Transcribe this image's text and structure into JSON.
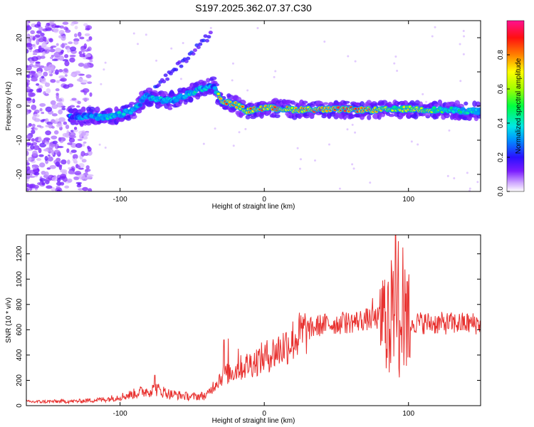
{
  "title": "S197.2025.362.07.37.C30",
  "chart_data": [
    {
      "type": "heatmap",
      "xlabel": "Height of straight line (km)",
      "ylabel": "Frequency (Hz)",
      "xlim": [
        -165,
        150
      ],
      "ylim": [
        -25,
        25
      ],
      "xticks": [
        -100,
        0,
        100
      ],
      "yticks": [
        -20,
        -10,
        0,
        10,
        20
      ],
      "colorbar": {
        "label": "Normalized spectral amplitude",
        "range": [
          0,
          1
        ],
        "ticks": [
          0.0,
          0.2,
          0.4,
          0.6,
          0.8
        ]
      },
      "ridge": [
        [
          -130,
          -3,
          0.3
        ],
        [
          -120,
          -3,
          0.35
        ],
        [
          -110,
          -3.5,
          0.4
        ],
        [
          -100,
          -2.5,
          0.4
        ],
        [
          -90,
          -1,
          0.4
        ],
        [
          -82,
          3,
          0.35
        ],
        [
          -75,
          2,
          0.4
        ],
        [
          -65,
          1.5,
          0.35
        ],
        [
          -55,
          3,
          0.4
        ],
        [
          -45,
          5,
          0.4
        ],
        [
          -35,
          6,
          0.35
        ],
        [
          -30,
          1.5,
          0.9
        ],
        [
          -20,
          0.5,
          0.75
        ],
        [
          -12,
          -1.5,
          0.8
        ],
        [
          0,
          -0.5,
          0.85
        ],
        [
          20,
          -1,
          0.75
        ],
        [
          40,
          -1,
          0.9
        ],
        [
          60,
          -1,
          0.85
        ],
        [
          75,
          -1.2,
          0.8
        ],
        [
          90,
          -1,
          0.65
        ],
        [
          100,
          -0.8,
          0.7
        ],
        [
          110,
          -1,
          0.75
        ],
        [
          125,
          -1.2,
          0.5
        ],
        [
          145,
          -1.5,
          0.45
        ]
      ]
    },
    {
      "type": "line",
      "xlabel": "Height of straight line (km)",
      "ylabel": "SNR (10 * v/v)",
      "xlim": [
        -165,
        150
      ],
      "ylim": [
        0,
        1350
      ],
      "xticks": [
        -100,
        0,
        100
      ],
      "yticks": [
        0,
        200,
        400,
        600,
        800,
        1000,
        1200
      ],
      "color": "#e8312f",
      "envelope": [
        [
          -165,
          30
        ],
        [
          -130,
          35
        ],
        [
          -110,
          50
        ],
        [
          -95,
          80
        ],
        [
          -85,
          110
        ],
        [
          -75,
          130
        ],
        [
          -65,
          90
        ],
        [
          -50,
          70
        ],
        [
          -40,
          80
        ],
        [
          -35,
          160
        ],
        [
          -30,
          230
        ],
        [
          -20,
          280
        ],
        [
          -10,
          330
        ],
        [
          0,
          380
        ],
        [
          10,
          440
        ],
        [
          20,
          520
        ],
        [
          30,
          600
        ],
        [
          40,
          640
        ],
        [
          50,
          650
        ],
        [
          60,
          660
        ],
        [
          70,
          680
        ],
        [
          80,
          690
        ],
        [
          88,
          700
        ],
        [
          95,
          690
        ],
        [
          100,
          660
        ],
        [
          120,
          650
        ],
        [
          150,
          650
        ]
      ],
      "peaks": [
        [
          -76,
          240
        ],
        [
          -28,
          520
        ],
        [
          -25,
          530
        ],
        [
          -18,
          450
        ],
        [
          55,
          720
        ],
        [
          75,
          850
        ],
        [
          88,
          1150
        ],
        [
          91,
          1350
        ],
        [
          93,
          1300
        ],
        [
          96,
          1250
        ],
        [
          99,
          980
        ]
      ]
    }
  ]
}
